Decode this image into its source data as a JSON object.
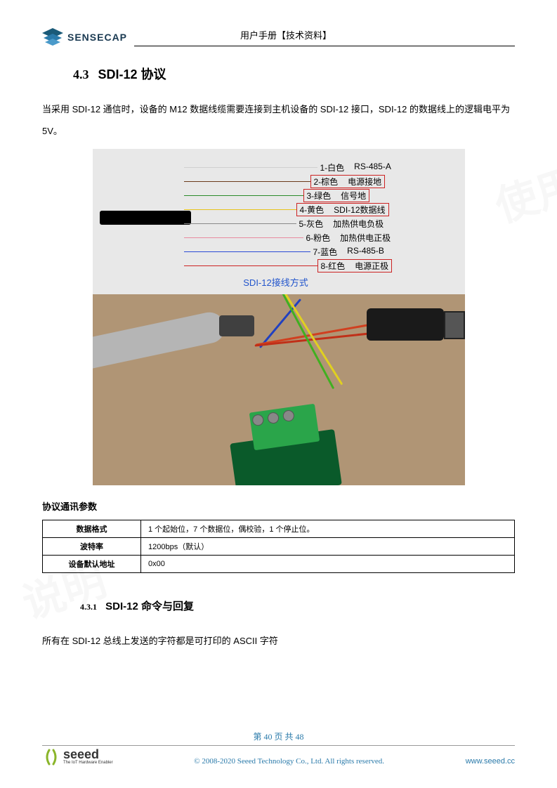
{
  "header": {
    "brand": "SENSECAP",
    "title": "用户手册【技术资料】"
  },
  "section": {
    "number": "4.3",
    "title": "SDI-12 协议"
  },
  "intro_text": "当采用 SDI-12 通信时，设备的 M12 数据线缆需要连接到主机设备的 SDI-12 接口，SDI-12 的数据线上的逻辑电平为 5V。",
  "wiring": {
    "caption": "SDI-12接线方式",
    "wires": [
      {
        "num": "1",
        "color_label": "白色",
        "func": "RS-485-A",
        "line_color": "#d0d0d0",
        "boxed": false,
        "len": 190
      },
      {
        "num": "2",
        "color_label": "棕色",
        "func": "电源接地",
        "line_color": "#6b3a1a",
        "boxed": true,
        "len": 180
      },
      {
        "num": "3",
        "color_label": "绿色",
        "func": "信号地",
        "line_color": "#2a8a2a",
        "boxed": true,
        "len": 170
      },
      {
        "num": "4",
        "color_label": "黄色",
        "func": "SDI-12数据线",
        "line_color": "#e6c31b",
        "boxed": true,
        "len": 160
      },
      {
        "num": "5",
        "color_label": "灰色",
        "func": "加热供电负极",
        "line_color": "#888888",
        "boxed": false,
        "len": 160
      },
      {
        "num": "6",
        "color_label": "粉色",
        "func": "加热供电正极",
        "line_color": "#e88aa0",
        "boxed": false,
        "len": 170
      },
      {
        "num": "7",
        "color_label": "蓝色",
        "func": "RS-485-B",
        "line_color": "#2a4ad6",
        "boxed": false,
        "len": 180
      },
      {
        "num": "8",
        "color_label": "红色",
        "func": "电源正极",
        "line_color": "#cc2222",
        "boxed": true,
        "len": 190
      }
    ]
  },
  "param": {
    "heading": "协议通讯参数",
    "rows": [
      {
        "label": "数据格式",
        "value": "1 个起始位，7 个数据位，偶校验，1 个停止位。"
      },
      {
        "label": "波特率",
        "value": "1200bps（默认）"
      },
      {
        "label": "设备默认地址",
        "value": "0x00"
      }
    ]
  },
  "subsection": {
    "number": "4.3.1",
    "title": "SDI-12 命令与回复"
  },
  "body2": "所有在 SDI-12 总线上发送的字符都是可打印的 ASCII 字符",
  "footer": {
    "page": "第 40 页 共 48",
    "seeed_name": "seeed",
    "seeed_tag": "The IoT Hardware Enabler",
    "copyright": "© 2008-2020 Seeed Technology Co., Ltd.    All rights reserved.",
    "website": "www.seeed.cc"
  },
  "colors": {
    "link": "#2a7aaa",
    "caption": "#2255cc",
    "box_border": "#cc2222",
    "diagram_bg": "#e8e8e8"
  }
}
